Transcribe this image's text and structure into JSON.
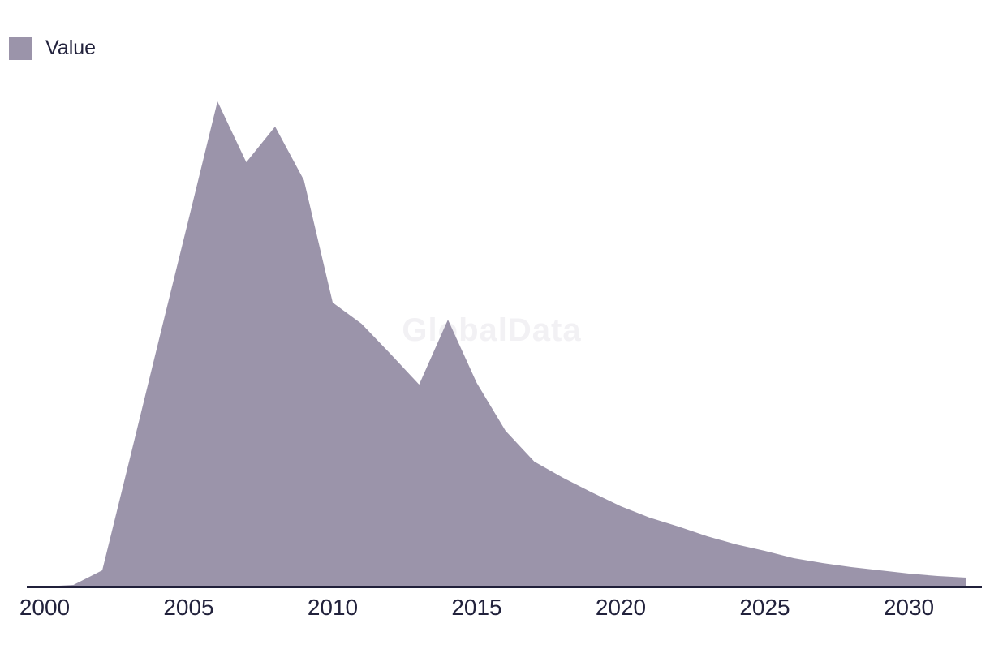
{
  "legend": {
    "label": "Value",
    "swatch_color": "#9b94aa"
  },
  "watermark": {
    "text": "GlobalData"
  },
  "colors": {
    "area": "#9b94aa",
    "axis_line": "#20203a",
    "tick_text": "#22223c",
    "watermark": "#f2f1f4",
    "background": "#ffffff"
  },
  "chart_data": {
    "type": "area",
    "title": "",
    "xlabel": "",
    "ylabel": "",
    "grid": false,
    "y_axis_visible": false,
    "legend_position": "top-left",
    "xlim": [
      2000,
      2032
    ],
    "ylim": [
      0,
      650
    ],
    "xticks": [
      2000,
      2005,
      2010,
      2015,
      2020,
      2025,
      2030
    ],
    "series": [
      {
        "name": "Value",
        "x": [
          2000,
          2001,
          2002,
          2003,
          2004,
          2005,
          2006,
          2007,
          2008,
          2009,
          2010,
          2011,
          2012,
          2013,
          2014,
          2015,
          2016,
          2017,
          2018,
          2019,
          2020,
          2021,
          2022,
          2023,
          2024,
          2025,
          2026,
          2027,
          2028,
          2029,
          2030,
          2031,
          2032
        ],
        "values": [
          0,
          2,
          20,
          164,
          309,
          453,
          598,
          523,
          567,
          501,
          350,
          324,
          287,
          249,
          329,
          251,
          192,
          154,
          134,
          116,
          99,
          85,
          74,
          62,
          52,
          44,
          35,
          29,
          24,
          20,
          16,
          13,
          11
        ]
      }
    ]
  }
}
